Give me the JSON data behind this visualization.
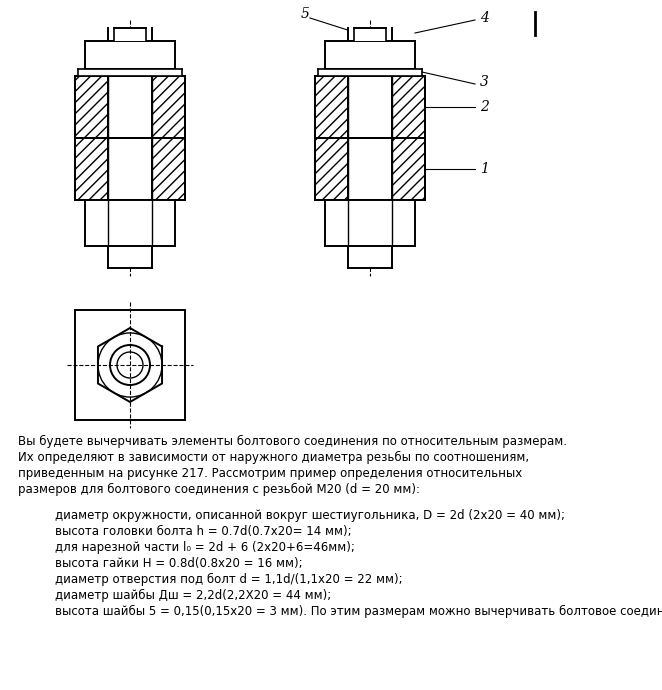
{
  "bg_color": "#ffffff",
  "line_color": "#000000",
  "figsize": [
    6.62,
    6.9
  ],
  "dpi": 100,
  "label1": "1",
  "label2": "2",
  "label3": "3",
  "label4": "4",
  "label5": "5",
  "text_main": "Вы будете вычерчивать элементы болтового соединения по относительным размерам.\nИх определяют в зависимости от наружного диаметра резьбы по соотношениям,\nприведенным на рисунке 217. Рассмотрим пример определения относительных\nразмеров для болтового соединения с резьбой М20 (d = 20 мм):",
  "bullets": [
    "диаметр окружности, описанной вокруг шестиугольника, D = 2d (2x20 = 40 мм);",
    "высота головки болта h = 0.7d(0.7x20= 14 мм);",
    "для нарезной части l₀ = 2d + 6 (2x20+6=46мм);",
    "высота гайки H = 0.8d(0.8x20 = 16 мм);",
    "диаметр отверстия под болт d = 1,1d/(1,1x20 = 22 мм);",
    "диаметр шайбы Дш = 2,2d(2,2X20 = 44 мм);",
    "высота шайбы 5 = 0,15(0,15x20 = 3 мм). По этим размерам можно вычерчивать болтовое соединение."
  ]
}
